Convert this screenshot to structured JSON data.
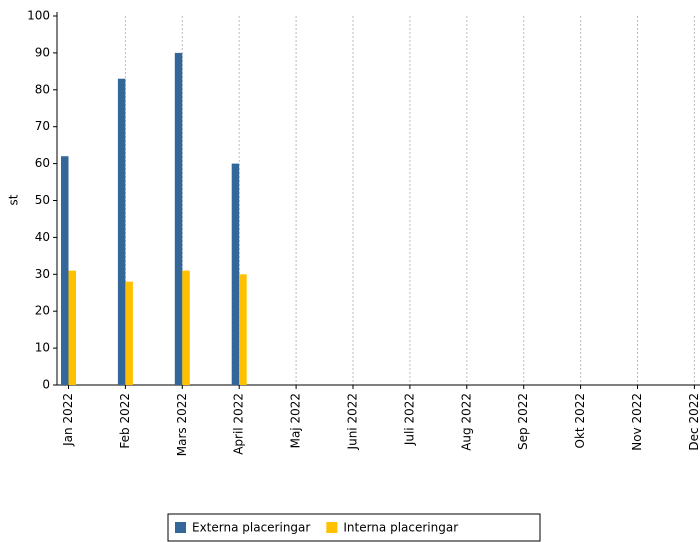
{
  "chart_data": {
    "type": "bar",
    "y_label": "st",
    "categories": [
      "Jan 2022",
      "Feb 2022",
      "Mars 2022",
      "April 2022",
      "Maj 2022",
      "Juni 2022",
      "Juli 2022",
      "Aug 2022",
      "Sep 2022",
      "Okt 2022",
      "Nov 2022",
      "Dec 2022"
    ],
    "series": [
      {
        "name": "Externa placeringar",
        "color": "#336699",
        "values": [
          62,
          83,
          90,
          60,
          null,
          null,
          null,
          null,
          null,
          null,
          null,
          null
        ]
      },
      {
        "name": "Interna placeringar",
        "color": "#ffc000",
        "values": [
          31,
          28,
          31,
          30,
          null,
          null,
          null,
          null,
          null,
          null,
          null,
          null
        ]
      }
    ],
    "ylim": [
      0,
      100
    ],
    "yticks": [
      0,
      10,
      20,
      30,
      40,
      50,
      60,
      70,
      80,
      90,
      100
    ],
    "grid": true
  }
}
